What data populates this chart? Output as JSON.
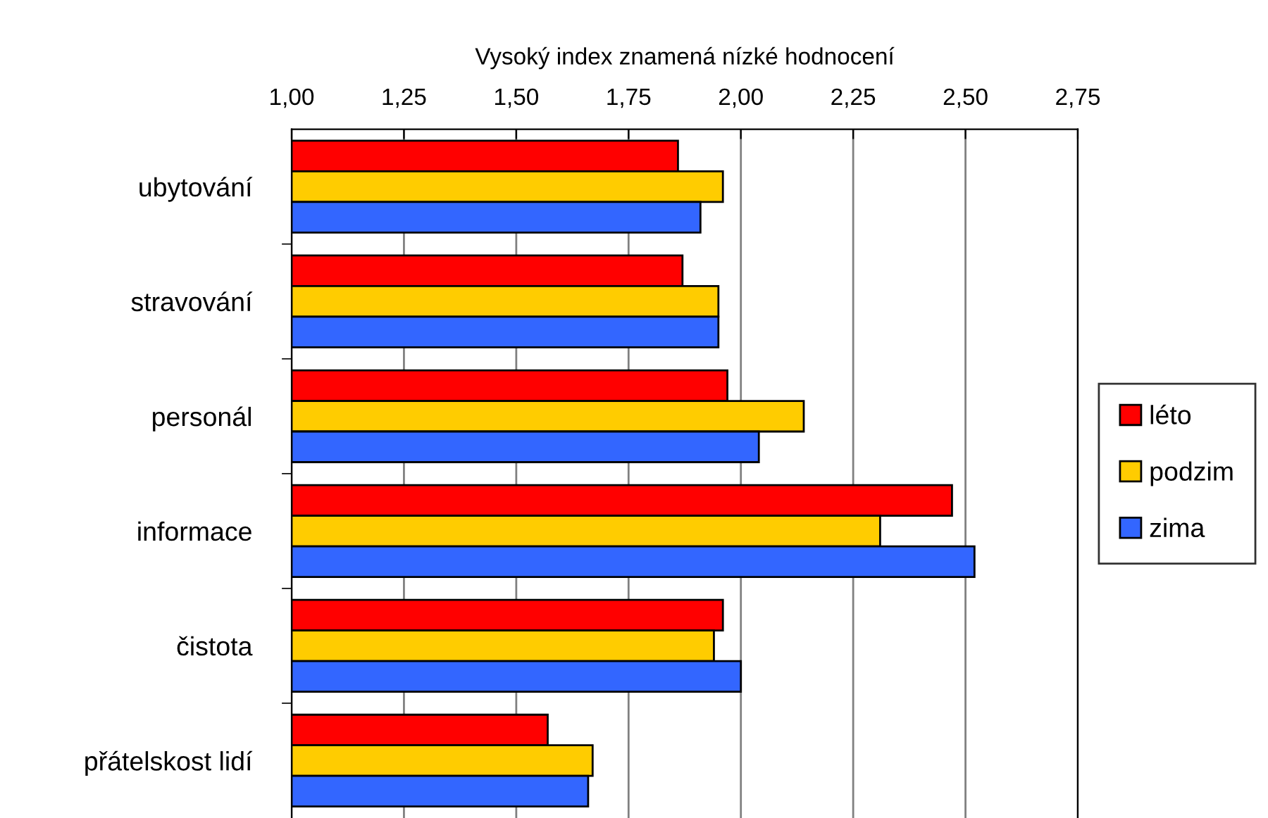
{
  "chart_data": {
    "type": "bar",
    "orientation": "horizontal",
    "xlabel": "Vysoký index znamená nízké hodnocení",
    "categories": [
      "ubytování",
      "stravování",
      "personál",
      "informace",
      "čistota",
      "přátelskost lidí"
    ],
    "series": [
      {
        "name": "léto",
        "color": "#ff0000",
        "values": [
          1.86,
          1.87,
          1.97,
          2.47,
          1.96,
          1.57
        ]
      },
      {
        "name": "podzim",
        "color": "#ffcc00",
        "values": [
          1.96,
          1.95,
          2.14,
          2.31,
          1.94,
          1.67
        ]
      },
      {
        "name": "zima",
        "color": "#3366ff",
        "values": [
          1.91,
          1.95,
          2.04,
          2.52,
          2.0,
          1.66
        ]
      }
    ],
    "xlim": [
      1.0,
      2.75
    ],
    "xticks": [
      {
        "value": 1.0,
        "label": "1,00"
      },
      {
        "value": 1.25,
        "label": "1,25"
      },
      {
        "value": 1.5,
        "label": "1,50"
      },
      {
        "value": 1.75,
        "label": "1,75"
      },
      {
        "value": 2.0,
        "label": "2,00"
      },
      {
        "value": 2.25,
        "label": "2,25"
      },
      {
        "value": 2.5,
        "label": "2,50"
      },
      {
        "value": 2.75,
        "label": "2,75"
      }
    ],
    "grid": "x",
    "legend": "right"
  }
}
